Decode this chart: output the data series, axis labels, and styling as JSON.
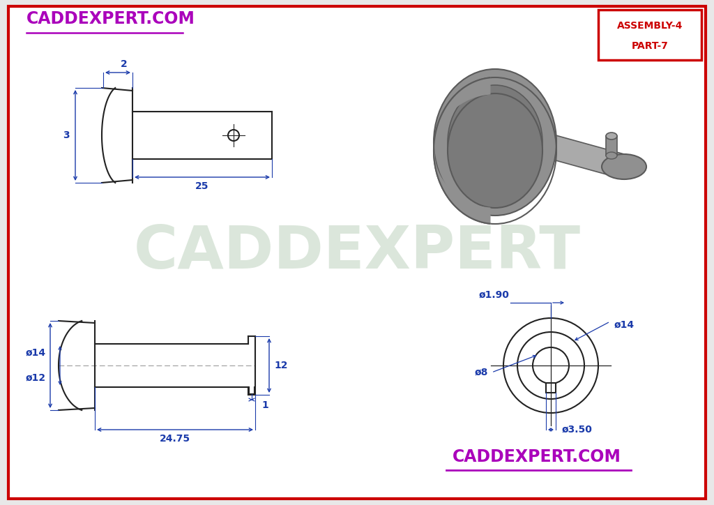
{
  "bg_color": "#e8e8e8",
  "page_bg": "#ffffff",
  "border_color": "#cc0000",
  "dim_color": "#1a3aaa",
  "line_color": "#222222",
  "iso_gray1": "#7a7a7a",
  "iso_gray2": "#909090",
  "iso_gray3": "#aaaaaa",
  "iso_gray4": "#666666",
  "iso_gray5": "#5a5a5a",
  "watermark_color": "#ccdccc",
  "title_color": "#cc0000",
  "header_purple": "#aa00bb",
  "title_text": "CADDEXPERT.COM",
  "bottom_title": "CADDEXPERT.COM",
  "watermark_text": "CADDEXPERT",
  "dim_fontsize": 9,
  "title_fontsize": 16,
  "watermark_fontsize": 62
}
